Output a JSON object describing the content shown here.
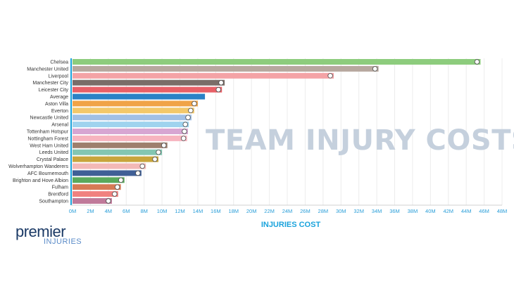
{
  "chart_data": {
    "type": "bar",
    "orientation": "horizontal",
    "title": "TEAM INJURY COSTS",
    "xlabel": "INJURIES COST",
    "ylabel": "",
    "xlim": [
      0,
      48
    ],
    "grid": true,
    "categories": [
      "Chelsea",
      "Manchester United",
      "Liverpool",
      "Manchester City",
      "Leicester City",
      "Average",
      "Aston Villa",
      "Everton",
      "Newcastle United",
      "Arsenal",
      "Tottenham Hotspur",
      "Nottingham Forest",
      "West Ham United",
      "Leeds United",
      "Crystal Palace",
      "Wolverhampton Wanderers",
      "AFC Bournemouth",
      "Brighton and Hove Albion",
      "Fulham",
      "Brentford",
      "Southampton"
    ],
    "values": [
      45.6,
      34.2,
      29.2,
      17.0,
      16.7,
      14.8,
      14.0,
      13.6,
      13.3,
      13.0,
      12.9,
      12.8,
      10.6,
      10.0,
      9.6,
      8.2,
      7.7,
      5.8,
      5.4,
      5.1,
      4.4
    ],
    "colors": [
      "#8dcc7d",
      "#b7a89f",
      "#f4a3a6",
      "#7a6d68",
      "#e86067",
      "#2a82c6",
      "#f0a347",
      "#f3c86a",
      "#a1c0e5",
      "#9fd3ee",
      "#d7a6d2",
      "#f7b4bf",
      "#9e7f6d",
      "#83c6b2",
      "#c8a53c",
      "#f3b9b7",
      "#3f5f96",
      "#59a95b",
      "#d67a55",
      "#f0817f",
      "#c07a9a"
    ],
    "x_ticks": [
      "0M",
      "2M",
      "4M",
      "6M",
      "8M",
      "10M",
      "12M",
      "14M",
      "16M",
      "18M",
      "20M",
      "22M",
      "24M",
      "26M",
      "28M",
      "30M",
      "32M",
      "34M",
      "36M",
      "38M",
      "40M",
      "42M",
      "44M",
      "46M",
      "48M"
    ]
  },
  "logo": {
    "main": "premier",
    "sub": "INJURIES"
  }
}
